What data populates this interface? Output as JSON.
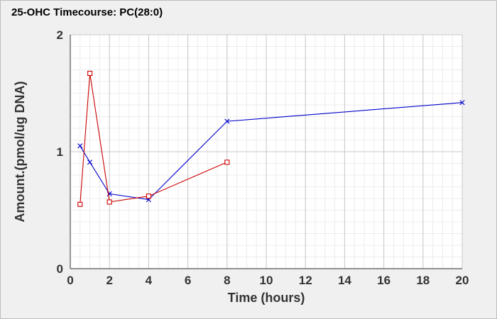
{
  "chart_data": {
    "type": "line",
    "title": "25-OHC Timecourse: PC(28:0)",
    "xlabel": "Time (hours)",
    "ylabel": "Amount.(pmol/ug DNA)",
    "xlim": [
      0,
      20
    ],
    "ylim": [
      0,
      2
    ],
    "xticks": [
      0,
      2,
      4,
      6,
      8,
      10,
      12,
      14,
      16,
      18,
      20
    ],
    "yticks": [
      0,
      1,
      2
    ],
    "grid": true,
    "series": [
      {
        "color": "#0000cc",
        "marker": "x",
        "x": [
          0.5,
          1,
          2,
          4,
          8,
          20
        ],
        "y": [
          1.05,
          0.91,
          0.64,
          0.59,
          1.26,
          1.42
        ]
      },
      {
        "color": "#cc0000",
        "marker": "square",
        "x": [
          0.5,
          1,
          2,
          4,
          8
        ],
        "y": [
          0.55,
          1.67,
          0.57,
          0.62,
          0.91
        ]
      }
    ]
  }
}
